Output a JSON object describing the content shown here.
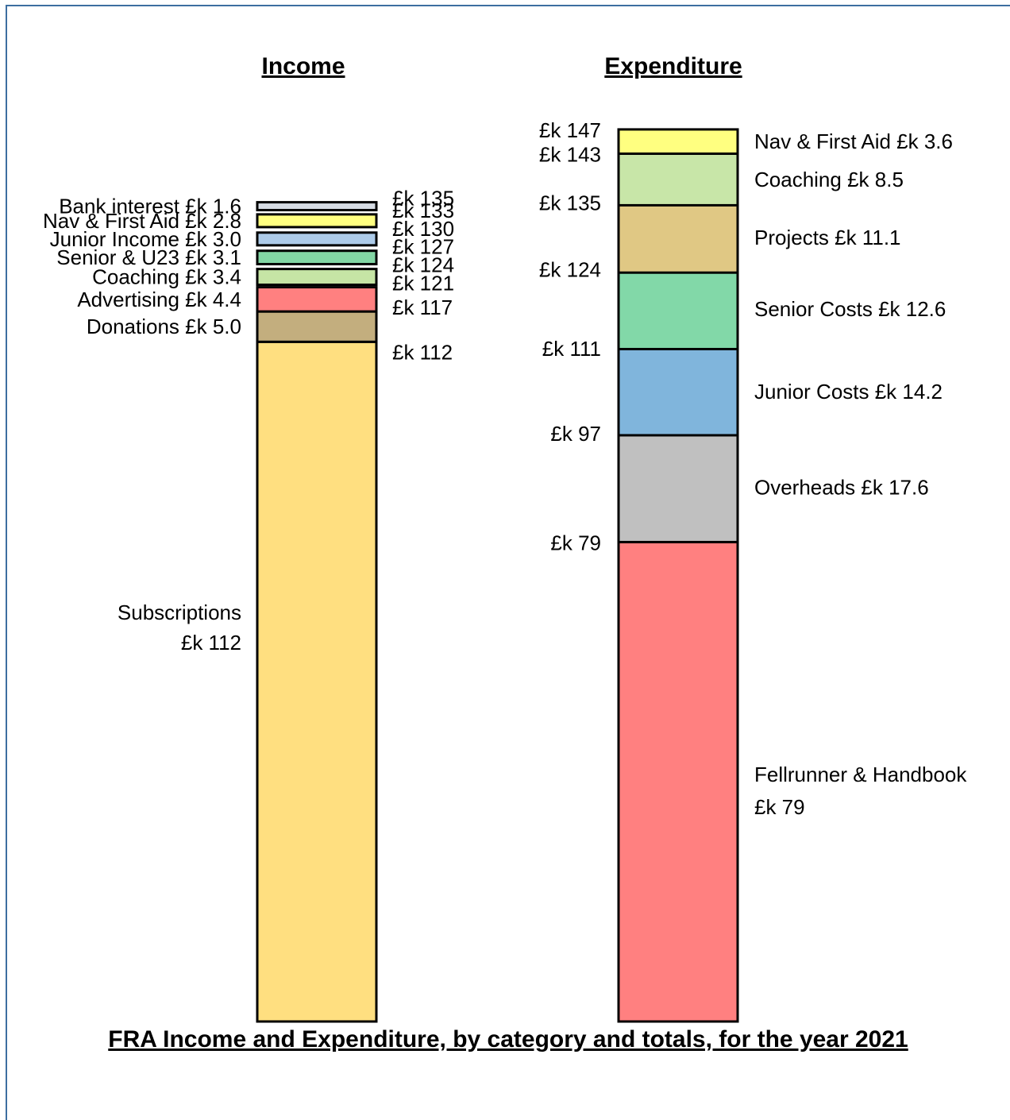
{
  "chart_data": {
    "type": "bar",
    "title": "FRA Income and Expenditure, by category and totals, for the year 2021",
    "panels": [
      {
        "heading": "Income",
        "segments": [
          {
            "label": "Subscriptions",
            "value_text": "£k 112",
            "value": 112,
            "cumulative": 112,
            "total_label": "£k 112",
            "color": "#ffdf80"
          },
          {
            "label": "Donations £k 5.0",
            "value": 5.0,
            "cumulative": 117,
            "total_label": "£k 117",
            "color": "#c3ae7e"
          },
          {
            "label": "Advertising £k 4.4",
            "value": 4.4,
            "cumulative": 121,
            "total_label": "£k 121",
            "color": "#ff8080"
          },
          {
            "label": "Coaching £k 3.4",
            "value": 3.4,
            "cumulative": 124,
            "total_label": "£k 124",
            "color": "#c6e5a5"
          },
          {
            "label": "Senior & U23 £k 3.1",
            "value": 3.1,
            "cumulative": 127,
            "total_label": "£k 127",
            "color": "#82d6a4"
          },
          {
            "label": "Junior Income £k 3.0",
            "value": 3.0,
            "cumulative": 130,
            "total_label": "£k 130",
            "color": "#adcbe9"
          },
          {
            "label": "Nav & First Aid £k 2.8",
            "value": 2.8,
            "cumulative": 133,
            "total_label": "£k 133",
            "color": "#ffff80"
          },
          {
            "label": "Bank interest £k 1.6",
            "value": 1.6,
            "cumulative": 135,
            "total_label": "£k 135",
            "color": "#d6dce4"
          }
        ]
      },
      {
        "heading": "Expenditure",
        "segments": [
          {
            "label": "Fellrunner & Handbook",
            "value_text": "£k 79",
            "value": 79,
            "cumulative": 79,
            "total_label": "£k 79",
            "color": "#ff8080"
          },
          {
            "label": "Overheads £k 17.6",
            "value": 17.6,
            "cumulative": 97,
            "total_label": "£k 97",
            "color": "#c0c0c0"
          },
          {
            "label": "Junior Costs £k 14.2",
            "value": 14.2,
            "cumulative": 111,
            "total_label": "£k 111",
            "color": "#80b5dc"
          },
          {
            "label": "Senior Costs £k 12.6",
            "value": 12.6,
            "cumulative": 124,
            "total_label": "£k 124",
            "color": "#82d8a8"
          },
          {
            "label": "Projects £k 11.1",
            "value": 11.1,
            "cumulative": 135,
            "total_label": "£k 135",
            "color": "#e0c884"
          },
          {
            "label": "Coaching £k 8.5",
            "value": 8.5,
            "cumulative": 143,
            "total_label": "£k 143",
            "color": "#c8e6a8"
          },
          {
            "label": "Nav & First Aid £k 3.6",
            "value": 3.6,
            "cumulative": 147,
            "total_label": "£k 147",
            "color": "#ffff80"
          }
        ]
      }
    ]
  }
}
